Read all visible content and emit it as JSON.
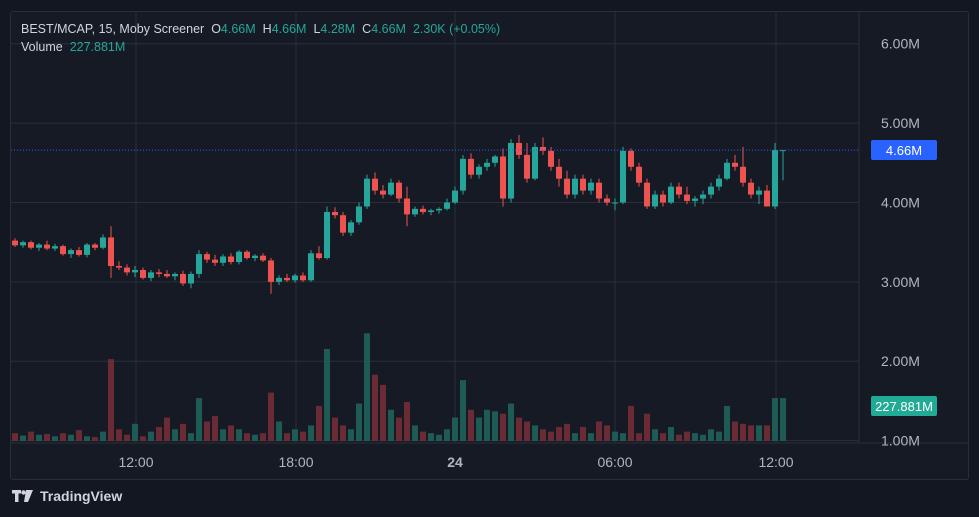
{
  "legend": {
    "symbol": "BEST/MCAP, 15, Moby Screener",
    "open_label": "O",
    "open": "4.66M",
    "high_label": "H",
    "high": "4.66M",
    "low_label": "L",
    "low": "4.28M",
    "close_label": "C",
    "close": "4.66M",
    "change": "2.30K (+0.05%)",
    "volume_label": "Volume",
    "volume_value": "227.881M"
  },
  "price_badge": "4.66M",
  "volume_badge": "227.881M",
  "footer": {
    "brand": "TradingView"
  },
  "colors": {
    "up": "#26a69a",
    "down": "#ef5350",
    "up_volume": "#1f5b55",
    "down_volume": "#6b2b35",
    "grid": "#2a2e39",
    "price_line": "#2962ff",
    "background": "#161a25"
  },
  "chart_data": {
    "type": "candlestick",
    "x_ticks": [
      "12:00",
      "18:00",
      "24",
      "06:00",
      "12:00"
    ],
    "y_ticks": [
      "6.00M",
      "5.00M",
      "4.00M",
      "3.00M",
      "2.00M",
      "1.00M"
    ],
    "y_tick_values": [
      6.0,
      5.0,
      4.0,
      3.0,
      2.0,
      1.0
    ],
    "ylim": [
      0.97,
      6.4
    ],
    "grid": true,
    "last_price": 4.66,
    "candles": [
      [
        3.52,
        3.55,
        3.44,
        3.46
      ],
      [
        3.46,
        3.52,
        3.43,
        3.5
      ],
      [
        3.5,
        3.52,
        3.41,
        3.43
      ],
      [
        3.43,
        3.49,
        3.39,
        3.47
      ],
      [
        3.47,
        3.52,
        3.4,
        3.42
      ],
      [
        3.42,
        3.48,
        3.39,
        3.45
      ],
      [
        3.45,
        3.47,
        3.33,
        3.35
      ],
      [
        3.35,
        3.42,
        3.3,
        3.4
      ],
      [
        3.4,
        3.44,
        3.32,
        3.34
      ],
      [
        3.34,
        3.49,
        3.31,
        3.47
      ],
      [
        3.47,
        3.49,
        3.4,
        3.43
      ],
      [
        3.43,
        3.6,
        3.41,
        3.56
      ],
      [
        3.56,
        3.7,
        3.05,
        3.2
      ],
      [
        3.2,
        3.26,
        3.15,
        3.18
      ],
      [
        3.18,
        3.22,
        3.08,
        3.12
      ],
      [
        3.12,
        3.2,
        3.06,
        3.15
      ],
      [
        3.15,
        3.18,
        3.03,
        3.05
      ],
      [
        3.05,
        3.15,
        3.01,
        3.12
      ],
      [
        3.12,
        3.16,
        3.06,
        3.1
      ],
      [
        3.1,
        3.15,
        3.05,
        3.07
      ],
      [
        3.07,
        3.12,
        3.02,
        3.1
      ],
      [
        3.1,
        3.14,
        2.95,
        2.98
      ],
      [
        2.98,
        3.13,
        2.92,
        3.1
      ],
      [
        3.1,
        3.4,
        3.05,
        3.35
      ],
      [
        3.35,
        3.38,
        3.24,
        3.28
      ],
      [
        3.28,
        3.34,
        3.2,
        3.24
      ],
      [
        3.24,
        3.35,
        3.2,
        3.32
      ],
      [
        3.32,
        3.36,
        3.22,
        3.25
      ],
      [
        3.25,
        3.4,
        3.22,
        3.38
      ],
      [
        3.38,
        3.4,
        3.28,
        3.3
      ],
      [
        3.3,
        3.35,
        3.26,
        3.33
      ],
      [
        3.33,
        3.36,
        3.25,
        3.27
      ],
      [
        3.27,
        3.3,
        2.85,
        3.0
      ],
      [
        3.0,
        3.08,
        2.96,
        3.05
      ],
      [
        3.05,
        3.1,
        3.0,
        3.02
      ],
      [
        3.02,
        3.1,
        2.99,
        3.08
      ],
      [
        3.08,
        3.12,
        3.0,
        3.02
      ],
      [
        3.02,
        3.4,
        3.0,
        3.36
      ],
      [
        3.36,
        3.45,
        3.28,
        3.3
      ],
      [
        3.3,
        3.95,
        3.28,
        3.88
      ],
      [
        3.88,
        3.94,
        3.8,
        3.84
      ],
      [
        3.84,
        3.88,
        3.58,
        3.62
      ],
      [
        3.62,
        3.78,
        3.58,
        3.75
      ],
      [
        3.75,
        4.0,
        3.72,
        3.95
      ],
      [
        3.95,
        4.35,
        3.92,
        4.3
      ],
      [
        4.3,
        4.38,
        4.1,
        4.15
      ],
      [
        4.15,
        4.22,
        4.05,
        4.1
      ],
      [
        4.1,
        4.3,
        4.08,
        4.25
      ],
      [
        4.25,
        4.28,
        4.0,
        4.05
      ],
      [
        4.05,
        4.2,
        3.7,
        3.85
      ],
      [
        3.85,
        3.95,
        3.82,
        3.92
      ],
      [
        3.92,
        3.96,
        3.85,
        3.88
      ],
      [
        3.88,
        3.92,
        3.84,
        3.9
      ],
      [
        3.9,
        3.94,
        3.86,
        3.92
      ],
      [
        3.92,
        4.05,
        3.9,
        4.0
      ],
      [
        4.0,
        4.2,
        3.98,
        4.15
      ],
      [
        4.15,
        4.6,
        4.1,
        4.55
      ],
      [
        4.55,
        4.62,
        4.3,
        4.35
      ],
      [
        4.35,
        4.48,
        4.3,
        4.45
      ],
      [
        4.45,
        4.55,
        4.4,
        4.5
      ],
      [
        4.5,
        4.6,
        4.45,
        4.58
      ],
      [
        4.58,
        4.68,
        3.95,
        4.05
      ],
      [
        4.05,
        4.8,
        4.0,
        4.75
      ],
      [
        4.75,
        4.85,
        4.55,
        4.6
      ],
      [
        4.6,
        4.75,
        4.25,
        4.3
      ],
      [
        4.3,
        4.75,
        4.28,
        4.7
      ],
      [
        4.7,
        4.82,
        4.6,
        4.65
      ],
      [
        4.65,
        4.7,
        4.4,
        4.45
      ],
      [
        4.45,
        4.55,
        4.2,
        4.3
      ],
      [
        4.3,
        4.4,
        4.05,
        4.1
      ],
      [
        4.1,
        4.35,
        4.05,
        4.3
      ],
      [
        4.3,
        4.35,
        4.1,
        4.15
      ],
      [
        4.15,
        4.3,
        4.1,
        4.25
      ],
      [
        4.25,
        4.3,
        4.0,
        4.05
      ],
      [
        4.05,
        4.1,
        3.96,
        4.0
      ],
      [
        4.0,
        4.05,
        3.9,
        4.0
      ],
      [
        4.0,
        4.7,
        3.98,
        4.65
      ],
      [
        4.65,
        4.68,
        4.4,
        4.45
      ],
      [
        4.45,
        4.5,
        4.2,
        4.25
      ],
      [
        4.25,
        4.3,
        3.92,
        3.95
      ],
      [
        3.95,
        4.15,
        3.92,
        4.1
      ],
      [
        4.1,
        4.15,
        3.95,
        4.0
      ],
      [
        4.0,
        4.25,
        3.98,
        4.2
      ],
      [
        4.2,
        4.25,
        4.05,
        4.1
      ],
      [
        4.1,
        4.2,
        3.98,
        4.02
      ],
      [
        4.02,
        4.08,
        3.95,
        4.05
      ],
      [
        4.05,
        4.15,
        3.98,
        4.1
      ],
      [
        4.1,
        4.25,
        4.05,
        4.2
      ],
      [
        4.2,
        4.35,
        4.15,
        4.3
      ],
      [
        4.3,
        4.55,
        4.28,
        4.5
      ],
      [
        4.5,
        4.6,
        4.4,
        4.45
      ],
      [
        4.45,
        4.7,
        4.2,
        4.25
      ],
      [
        4.25,
        4.3,
        4.05,
        4.1
      ],
      [
        4.1,
        4.2,
        3.98,
        4.15
      ],
      [
        4.15,
        4.22,
        3.95,
        3.95
      ],
      [
        3.95,
        4.75,
        3.92,
        4.66
      ],
      [
        4.66,
        4.66,
        4.28,
        4.66
      ]
    ],
    "volumes": [
      0.1,
      0.07,
      0.12,
      0.08,
      0.09,
      0.06,
      0.1,
      0.08,
      0.14,
      0.06,
      0.05,
      0.12,
      1.05,
      0.15,
      0.08,
      0.22,
      0.06,
      0.12,
      0.18,
      0.3,
      0.15,
      0.22,
      0.1,
      0.55,
      0.25,
      0.32,
      0.15,
      0.2,
      0.15,
      0.1,
      0.08,
      0.1,
      0.62,
      0.25,
      0.1,
      0.15,
      0.12,
      0.2,
      0.45,
      1.18,
      0.3,
      0.2,
      0.15,
      0.48,
      1.38,
      0.85,
      0.72,
      0.4,
      0.3,
      0.5,
      0.2,
      0.12,
      0.1,
      0.08,
      0.15,
      0.3,
      0.78,
      0.4,
      0.3,
      0.4,
      0.38,
      0.35,
      0.48,
      0.3,
      0.25,
      0.2,
      0.15,
      0.12,
      0.18,
      0.22,
      0.1,
      0.18,
      0.1,
      0.25,
      0.2,
      0.12,
      0.1,
      0.45,
      0.1,
      0.35,
      0.15,
      0.1,
      0.18,
      0.08,
      0.12,
      0.1,
      0.08,
      0.15,
      0.12,
      0.45,
      0.25,
      0.22,
      0.2,
      0.2,
      0.2,
      0.55,
      0.55
    ]
  }
}
